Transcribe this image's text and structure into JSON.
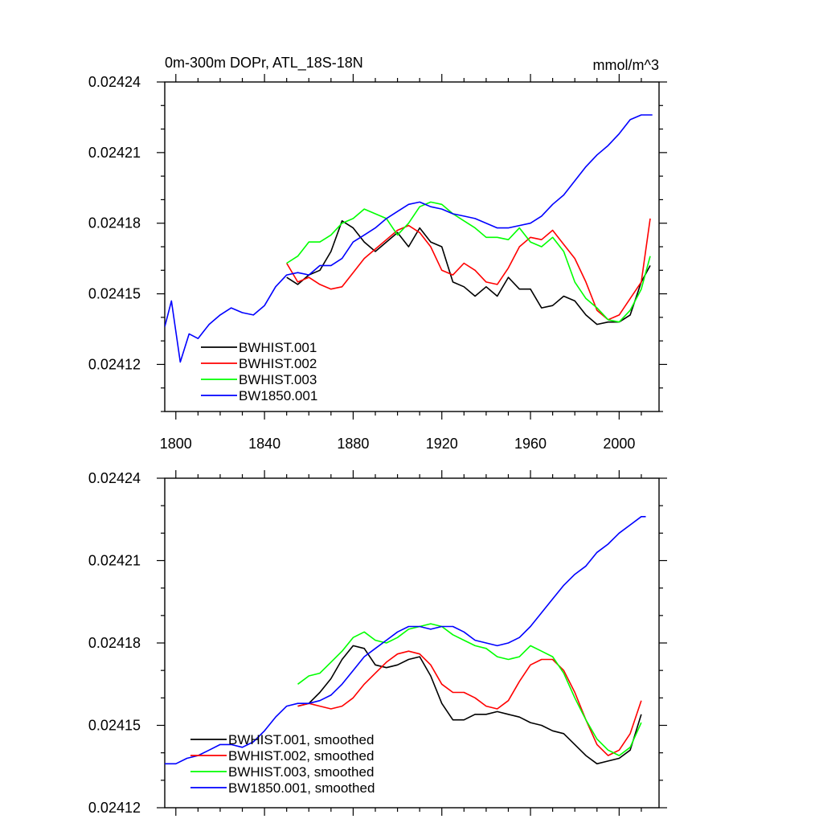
{
  "chart_data": [
    {
      "type": "line",
      "title": "0m-300m DOPr, ATL_18S-18N",
      "units": "mmol/m^3",
      "xlim": [
        1795,
        2018
      ],
      "ylim": [
        0.0241,
        0.02424
      ],
      "xticks": [
        1800,
        1840,
        1880,
        1920,
        1960,
        2000
      ],
      "xtick_labels": [
        "1800",
        "1840",
        "1880",
        "1920",
        "1960",
        "2000"
      ],
      "yticks": [
        0.02412,
        0.02415,
        0.02418,
        0.02421,
        0.02424
      ],
      "ytick_labels": [
        "0.02412",
        "0.02415",
        "0.02418",
        "0.02421",
        "0.02424"
      ],
      "legend_position": "bottom-left",
      "series": [
        {
          "name": "BWHIST.001",
          "color": "#000000",
          "x": [
            1850,
            1855,
            1860,
            1865,
            1870,
            1875,
            1880,
            1885,
            1890,
            1895,
            1900,
            1905,
            1910,
            1915,
            1920,
            1925,
            1930,
            1935,
            1940,
            1945,
            1950,
            1955,
            1960,
            1965,
            1970,
            1975,
            1980,
            1985,
            1990,
            1995,
            2000,
            2005,
            2010,
            2014
          ],
          "y": [
            0.024157,
            0.024154,
            0.024158,
            0.02416,
            0.024168,
            0.024181,
            0.024178,
            0.024172,
            0.024168,
            0.024172,
            0.024176,
            0.02417,
            0.024178,
            0.024172,
            0.02417,
            0.024155,
            0.024153,
            0.024149,
            0.024153,
            0.024149,
            0.024157,
            0.024152,
            0.024152,
            0.024144,
            0.024145,
            0.024149,
            0.024147,
            0.024141,
            0.024137,
            0.024138,
            0.024138,
            0.024141,
            0.024155,
            0.024162
          ]
        },
        {
          "name": "BWHIST.002",
          "color": "#ff0000",
          "x": [
            1850,
            1855,
            1860,
            1865,
            1870,
            1875,
            1880,
            1885,
            1890,
            1895,
            1900,
            1905,
            1910,
            1915,
            1920,
            1925,
            1930,
            1935,
            1940,
            1945,
            1950,
            1955,
            1960,
            1965,
            1970,
            1975,
            1980,
            1985,
            1990,
            1995,
            2000,
            2005,
            2010,
            2014
          ],
          "y": [
            0.024163,
            0.024155,
            0.024157,
            0.024154,
            0.024152,
            0.024153,
            0.024159,
            0.024165,
            0.024169,
            0.024173,
            0.024177,
            0.024179,
            0.024176,
            0.02417,
            0.02416,
            0.024158,
            0.024163,
            0.02416,
            0.024155,
            0.024154,
            0.024161,
            0.02417,
            0.024174,
            0.024173,
            0.024177,
            0.024171,
            0.024165,
            0.024155,
            0.024143,
            0.024139,
            0.024141,
            0.024148,
            0.024155,
            0.024182
          ]
        },
        {
          "name": "BWHIST.003",
          "color": "#00ff00",
          "x": [
            1850,
            1855,
            1860,
            1865,
            1870,
            1875,
            1880,
            1885,
            1890,
            1895,
            1900,
            1905,
            1910,
            1915,
            1920,
            1925,
            1930,
            1935,
            1940,
            1945,
            1950,
            1955,
            1960,
            1965,
            1970,
            1975,
            1980,
            1985,
            1990,
            1995,
            2000,
            2005,
            2010,
            2014
          ],
          "y": [
            0.024163,
            0.024166,
            0.024172,
            0.024172,
            0.024175,
            0.02418,
            0.024182,
            0.024186,
            0.024184,
            0.024182,
            0.024175,
            0.02418,
            0.024187,
            0.024189,
            0.024188,
            0.024184,
            0.024181,
            0.024178,
            0.024174,
            0.024174,
            0.024173,
            0.024178,
            0.024172,
            0.02417,
            0.024174,
            0.024168,
            0.024155,
            0.024148,
            0.024144,
            0.024139,
            0.024138,
            0.024143,
            0.024152,
            0.024166
          ]
        },
        {
          "name": "BW1850.001",
          "color": "#0000ff",
          "x": [
            1795,
            1798,
            1802,
            1806,
            1810,
            1815,
            1820,
            1825,
            1830,
            1835,
            1840,
            1845,
            1850,
            1855,
            1860,
            1865,
            1870,
            1875,
            1880,
            1885,
            1890,
            1895,
            1900,
            1905,
            1910,
            1915,
            1920,
            1925,
            1930,
            1935,
            1940,
            1945,
            1950,
            1955,
            1960,
            1965,
            1970,
            1975,
            1980,
            1985,
            1990,
            1995,
            2000,
            2005,
            2010,
            2015
          ],
          "y": [
            0.024136,
            0.024147,
            0.024121,
            0.024133,
            0.024131,
            0.024137,
            0.024141,
            0.024144,
            0.024142,
            0.024141,
            0.024145,
            0.024153,
            0.024158,
            0.024159,
            0.024158,
            0.024162,
            0.024162,
            0.024165,
            0.024172,
            0.024175,
            0.024178,
            0.024182,
            0.024185,
            0.024188,
            0.024189,
            0.024187,
            0.024186,
            0.024184,
            0.024183,
            0.024182,
            0.02418,
            0.024178,
            0.024178,
            0.024179,
            0.02418,
            0.024183,
            0.024188,
            0.024192,
            0.024198,
            0.024204,
            0.024209,
            0.024213,
            0.024218,
            0.024224,
            0.024226,
            0.024226
          ]
        }
      ]
    },
    {
      "type": "line",
      "xlim": [
        1795,
        2018
      ],
      "ylim": [
        0.02412,
        0.02424
      ],
      "xticks": [
        1800,
        1840,
        1880,
        1920,
        1960,
        2000
      ],
      "yticks": [
        0.02412,
        0.02415,
        0.02418,
        0.02421,
        0.02424
      ],
      "ytick_labels": [
        "0.02412",
        "0.02415",
        "0.02418",
        "0.02421",
        "0.02424"
      ],
      "legend_position": "bottom-left",
      "series": [
        {
          "name": "BWHIST.001, smoothed",
          "color": "#000000",
          "x": [
            1855,
            1860,
            1865,
            1870,
            1875,
            1880,
            1885,
            1890,
            1895,
            1900,
            1905,
            1910,
            1915,
            1920,
            1925,
            1930,
            1935,
            1940,
            1945,
            1950,
            1955,
            1960,
            1965,
            1970,
            1975,
            1980,
            1985,
            1990,
            1995,
            2000,
            2005,
            2010
          ],
          "y": [
            0.024157,
            0.024158,
            0.024162,
            0.024167,
            0.024174,
            0.024179,
            0.024178,
            0.024172,
            0.024171,
            0.024172,
            0.024174,
            0.024175,
            0.024168,
            0.024158,
            0.024152,
            0.024152,
            0.024154,
            0.024154,
            0.024155,
            0.024154,
            0.024153,
            0.024151,
            0.02415,
            0.024148,
            0.024147,
            0.024143,
            0.024139,
            0.024136,
            0.024137,
            0.024138,
            0.024141,
            0.024154
          ]
        },
        {
          "name": "BWHIST.002, smoothed",
          "color": "#ff0000",
          "x": [
            1855,
            1860,
            1865,
            1870,
            1875,
            1880,
            1885,
            1890,
            1895,
            1900,
            1905,
            1910,
            1915,
            1920,
            1925,
            1930,
            1935,
            1940,
            1945,
            1950,
            1955,
            1960,
            1965,
            1970,
            1975,
            1980,
            1985,
            1990,
            1995,
            2000,
            2005,
            2010
          ],
          "y": [
            0.024157,
            0.024158,
            0.024157,
            0.024156,
            0.024157,
            0.02416,
            0.024165,
            0.024169,
            0.024173,
            0.024176,
            0.024177,
            0.024176,
            0.024172,
            0.024165,
            0.024162,
            0.024162,
            0.02416,
            0.024157,
            0.024156,
            0.024159,
            0.024166,
            0.024172,
            0.024174,
            0.024174,
            0.02417,
            0.024162,
            0.024152,
            0.024143,
            0.024139,
            0.024141,
            0.024147,
            0.024159
          ]
        },
        {
          "name": "BWHIST.003, smoothed",
          "color": "#00ff00",
          "x": [
            1855,
            1860,
            1865,
            1870,
            1875,
            1880,
            1885,
            1890,
            1895,
            1900,
            1905,
            1910,
            1915,
            1920,
            1925,
            1930,
            1935,
            1940,
            1945,
            1950,
            1955,
            1960,
            1965,
            1970,
            1975,
            1980,
            1985,
            1990,
            1995,
            2000,
            2005,
            2010
          ],
          "y": [
            0.024165,
            0.024168,
            0.024169,
            0.024173,
            0.024177,
            0.024182,
            0.024184,
            0.024181,
            0.02418,
            0.024182,
            0.024185,
            0.024186,
            0.024187,
            0.024186,
            0.024183,
            0.024181,
            0.024179,
            0.024178,
            0.024175,
            0.024174,
            0.024175,
            0.024179,
            0.024177,
            0.024175,
            0.024169,
            0.02416,
            0.024152,
            0.024145,
            0.024141,
            0.024139,
            0.024142,
            0.024151
          ]
        },
        {
          "name": "BW1850.001, smoothed",
          "color": "#0000ff",
          "x": [
            1795,
            1800,
            1805,
            1810,
            1815,
            1820,
            1825,
            1830,
            1835,
            1840,
            1845,
            1850,
            1855,
            1860,
            1865,
            1870,
            1875,
            1880,
            1885,
            1890,
            1895,
            1900,
            1905,
            1910,
            1915,
            1920,
            1925,
            1930,
            1935,
            1940,
            1945,
            1950,
            1955,
            1960,
            1965,
            1970,
            1975,
            1980,
            1985,
            1990,
            1995,
            2000,
            2005,
            2010,
            2012
          ],
          "y": [
            0.024136,
            0.024136,
            0.024138,
            0.024139,
            0.024141,
            0.024143,
            0.024143,
            0.024142,
            0.024144,
            0.024148,
            0.024153,
            0.024157,
            0.024158,
            0.024158,
            0.024159,
            0.024161,
            0.024165,
            0.02417,
            0.024175,
            0.024178,
            0.024181,
            0.024184,
            0.024186,
            0.024186,
            0.024185,
            0.024186,
            0.024186,
            0.024184,
            0.024181,
            0.02418,
            0.024179,
            0.02418,
            0.024182,
            0.024186,
            0.024191,
            0.024196,
            0.024201,
            0.024205,
            0.024208,
            0.024213,
            0.024216,
            0.02422,
            0.024223,
            0.024226,
            0.024226
          ]
        }
      ]
    }
  ]
}
